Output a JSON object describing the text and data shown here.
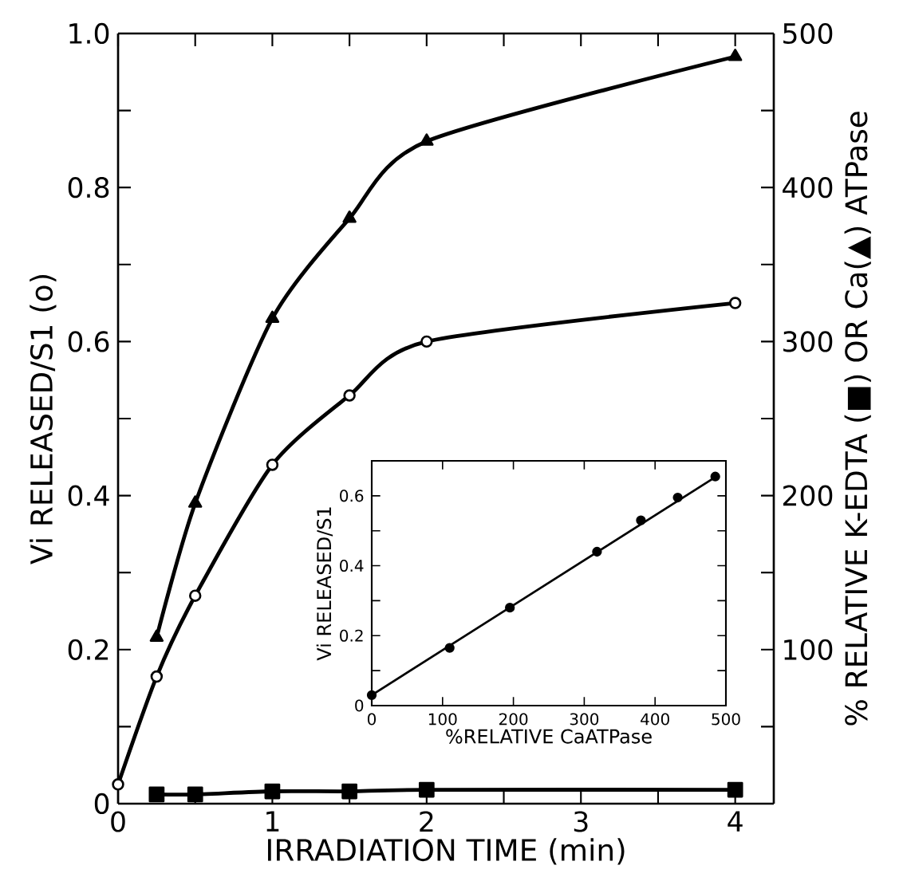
{
  "chart_data": [
    {
      "type": "line",
      "xlabel": "IRRADIATION TIME (min)",
      "ylabel": "Vi RELEASED/S1 (o)",
      "y2label": "% RELATIVE K-EDTA (■) OR Ca(▲) ATPase",
      "xlim": [
        0,
        4.25
      ],
      "ylim": [
        0,
        1
      ],
      "y2lim": [
        0,
        500
      ],
      "xticks": [
        0,
        {
          "value": 0.5,
          "label": null
        },
        1,
        {
          "value": 1.5,
          "label": null
        },
        2,
        {
          "value": 2.5,
          "label": null
        },
        3,
        {
          "value": 3.5,
          "label": null
        },
        4
      ],
      "yticks": [
        0,
        {
          "value": 0.1,
          "label": null
        },
        0.2,
        {
          "value": 0.3,
          "label": null
        },
        0.4,
        {
          "value": 0.5,
          "label": null
        },
        0.6,
        {
          "value": 0.7,
          "label": null
        },
        0.8,
        {
          "value": 0.9,
          "label": null
        },
        {
          "value": 1,
          "label": "1.0"
        }
      ],
      "y2ticks": [
        {
          "value": 50,
          "label": null
        },
        100,
        {
          "value": 150,
          "label": null
        },
        200,
        {
          "value": 250,
          "label": null
        },
        300,
        {
          "value": 350,
          "label": null
        },
        400,
        {
          "value": 450,
          "label": null
        },
        500
      ],
      "series": [
        {
          "color": "#000000",
          "marker": "circle",
          "x": [
            0,
            0.25,
            0.5,
            1,
            1.5,
            2,
            4
          ],
          "values": [
            0.025,
            0.165,
            0.27,
            0.44,
            0.53,
            0.6,
            0.65
          ]
        },
        {
          "color": "#000000",
          "marker": "triangle",
          "axis": "y2",
          "x": [
            0.25,
            0.5,
            1,
            1.5,
            2,
            4
          ],
          "values": [
            108,
            195,
            315,
            380,
            430,
            485
          ]
        },
        {
          "color": "#000000",
          "marker": "square",
          "axis": "y2",
          "x": [
            0.25,
            0.5,
            1,
            1.5,
            2,
            4
          ],
          "values": [
            6,
            6,
            8,
            8,
            9,
            9
          ]
        }
      ]
    },
    {
      "type": "scatter",
      "xlabel": "%RELATIVE CaATPase",
      "ylabel": "Vi RELEASED/S1",
      "xlim": [
        0,
        500
      ],
      "ylim": [
        0,
        0.7
      ],
      "xticks": [
        0,
        100,
        200,
        300,
        400,
        500
      ],
      "yticks": [
        0,
        {
          "value": 0.1,
          "label": null
        },
        0.2,
        {
          "value": 0.3,
          "label": null
        },
        0.4,
        {
          "value": 0.5,
          "label": null
        },
        0.6
      ],
      "series": [
        {
          "color": "#000000",
          "marker": "circle",
          "x": [
            0,
            110,
            195,
            318,
            380,
            432,
            485
          ],
          "values": [
            0.03,
            0.165,
            0.28,
            0.44,
            0.53,
            0.595,
            0.655
          ]
        },
        {
          "type": "line",
          "color": "#000000",
          "marker": "none",
          "x": [
            0,
            490
          ],
          "values": [
            0.03,
            0.66
          ]
        }
      ]
    }
  ]
}
